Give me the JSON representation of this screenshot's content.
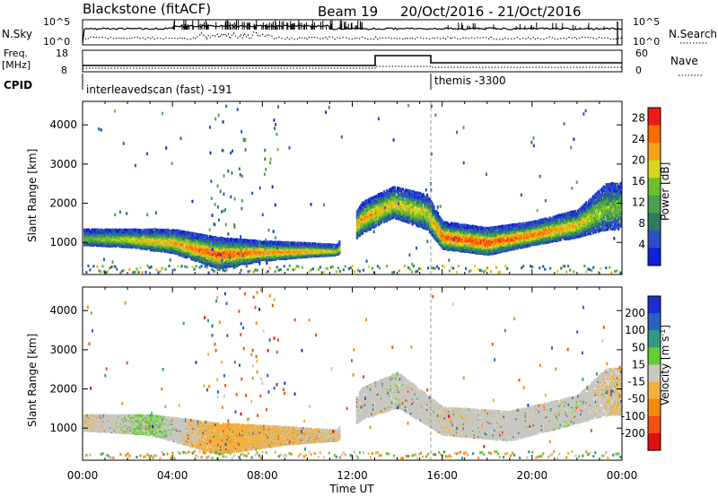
{
  "header": {
    "station": "Blackstone (fitACF)",
    "beam": "Beam 19",
    "date_range": "20/Oct/2016 - 21/Oct/2016"
  },
  "summary_panels": {
    "nsky_label": "N.Sky",
    "nsky_top": "10^5",
    "nsky_bottom": "10^0",
    "nsearch_label": "N.Search",
    "nsearch_top": "10^5",
    "nsearch_bottom": "10^0",
    "freq_label": "Freq.",
    "freq_unit": "[MHz]",
    "freq_top": "18",
    "freq_bottom": "8",
    "nave_label": "Nave",
    "nave_top": "60",
    "nave_bottom": "0",
    "cpid_label": "CPID",
    "cpid_segments": [
      {
        "name": "interleavedscan (fast) -191",
        "start_hour": 0,
        "end_hour": 15.5
      },
      {
        "name": "themis -3300",
        "start_hour": 15.5,
        "end_hour": 24
      }
    ]
  },
  "chart_data": [
    {
      "type": "heatmap",
      "name": "power",
      "ylabel": "Slant Range [km]",
      "xlabel": "Time UT",
      "xlim": [
        0,
        24
      ],
      "ylim": [
        180,
        4600
      ],
      "x_ticks": [
        "00:00",
        "04:00",
        "08:00",
        "12:00",
        "16:00",
        "20:00",
        "00:00"
      ],
      "y_ticks": [
        1000,
        2000,
        3000,
        4000
      ],
      "colorbar": {
        "label": "Power [dB]",
        "ticks": [
          4,
          8,
          12,
          16,
          20,
          24,
          28
        ],
        "range": [
          0,
          30
        ],
        "colors": [
          "#1020d8",
          "#2a4fc8",
          "#2f7a60",
          "#4aa050",
          "#6cbf2a",
          "#d6d61c",
          "#f3a31a",
          "#ff6a00",
          "#ee1a1a"
        ]
      },
      "echo_band": [
        {
          "hour": 0.2,
          "range_low": 900,
          "range_high": 1300,
          "peak_db": 14
        },
        {
          "hour": 2,
          "range_low": 850,
          "range_high": 1300,
          "peak_db": 18
        },
        {
          "hour": 4,
          "range_low": 700,
          "range_high": 1300,
          "peak_db": 22
        },
        {
          "hour": 6,
          "range_low": 300,
          "range_high": 1100,
          "peak_db": 26
        },
        {
          "hour": 8,
          "range_low": 500,
          "range_high": 1000,
          "peak_db": 24
        },
        {
          "hour": 10,
          "range_low": 600,
          "range_high": 950,
          "peak_db": 22
        },
        {
          "hour": 11.3,
          "range_low": 650,
          "range_high": 900,
          "peak_db": 18
        },
        {
          "hour": 12.4,
          "range_low": 1200,
          "range_high": 2000,
          "peak_db": 22
        },
        {
          "hour": 13.8,
          "range_low": 1600,
          "range_high": 2400,
          "peak_db": 20
        },
        {
          "hour": 15.3,
          "range_low": 1300,
          "range_high": 2200,
          "peak_db": 18
        },
        {
          "hour": 16,
          "range_low": 800,
          "range_high": 1500,
          "peak_db": 26
        },
        {
          "hour": 18,
          "range_low": 650,
          "range_high": 1350,
          "peak_db": 26
        },
        {
          "hour": 20,
          "range_low": 900,
          "range_high": 1500,
          "peak_db": 24
        },
        {
          "hour": 22,
          "range_low": 1100,
          "range_high": 1800,
          "peak_db": 20
        },
        {
          "hour": 23.3,
          "range_low": 1300,
          "range_high": 2500,
          "peak_db": 14
        }
      ]
    },
    {
      "type": "heatmap",
      "name": "velocity",
      "ylabel": "Slant Range [km]",
      "xlabel": "Time UT",
      "xlim": [
        0,
        24
      ],
      "ylim": [
        180,
        4600
      ],
      "x_ticks": [
        "00:00",
        "04:00",
        "08:00",
        "12:00",
        "16:00",
        "20:00",
        "00:00"
      ],
      "y_ticks": [
        1000,
        2000,
        3000,
        4000
      ],
      "colorbar": {
        "label": "Velocity [m s-1]",
        "ticks": [
          "200",
          "100",
          "50",
          "15",
          "-15",
          "-50",
          "-100",
          "-200"
        ],
        "colors": [
          "#1a2fd0",
          "#2a60c0",
          "#2f9a80",
          "#66cc33",
          "#c8c8c0",
          "#f0b040",
          "#f08a10",
          "#f05010",
          "#e01010"
        ]
      },
      "echo_band": [
        {
          "hour": 0.2,
          "range_low": 900,
          "range_high": 1300,
          "velocity": -10
        },
        {
          "hour": 3,
          "range_low": 800,
          "range_high": 1300,
          "velocity": 20
        },
        {
          "hour": 6,
          "range_low": 300,
          "range_high": 1100,
          "velocity": -30
        },
        {
          "hour": 9,
          "range_low": 550,
          "range_high": 1000,
          "velocity": -20
        },
        {
          "hour": 11.3,
          "range_low": 650,
          "range_high": 900,
          "velocity": -10
        },
        {
          "hour": 12.4,
          "range_low": 1200,
          "range_high": 2000,
          "velocity": 0
        },
        {
          "hour": 14,
          "range_low": 1500,
          "range_high": 2400,
          "velocity": 5
        },
        {
          "hour": 16,
          "range_low": 800,
          "range_high": 1500,
          "velocity": -5
        },
        {
          "hour": 19,
          "range_low": 650,
          "range_high": 1400,
          "velocity": 0
        },
        {
          "hour": 22,
          "range_low": 1100,
          "range_high": 1800,
          "velocity": 5
        },
        {
          "hour": 23.3,
          "range_low": 1300,
          "range_high": 2500,
          "velocity": -10
        }
      ]
    }
  ]
}
